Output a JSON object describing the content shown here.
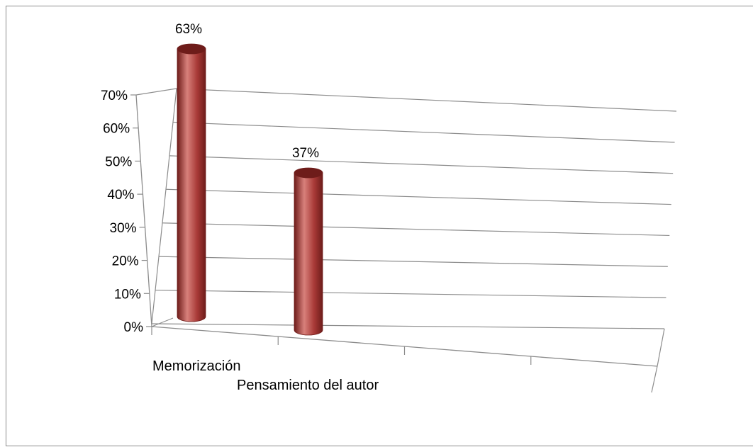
{
  "chart_data": {
    "type": "bar",
    "style": "3d-cylinder",
    "categories": [
      "Memorización",
      "Pensamiento del autor"
    ],
    "series": [
      {
        "values": [
          0.63,
          0.37
        ]
      }
    ],
    "data_labels": [
      "63%",
      "37%"
    ],
    "y_ticks": [
      "0%",
      "10%",
      "20%",
      "30%",
      "40%",
      "50%",
      "60%",
      "70%"
    ],
    "ylim": [
      0,
      0.7
    ],
    "title": "",
    "xlabel": "",
    "ylabel": "",
    "grid": true,
    "legend": "none",
    "colors": {
      "bar": "#a83a37",
      "bar_dark": "#6e1c1a",
      "bar_light": "#d8807b",
      "grid": "#8c8c8c",
      "border": "#8c8c8c"
    }
  }
}
